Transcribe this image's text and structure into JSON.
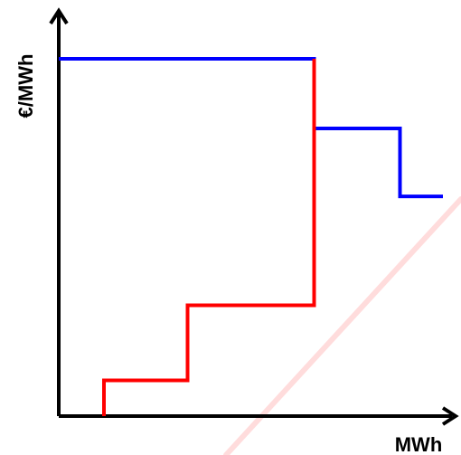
{
  "chart_data": {
    "type": "line",
    "xlabel": "MWh",
    "ylabel": "€/MWh",
    "grid": false,
    "legend": "none",
    "series": [
      {
        "color": "#0000ff",
        "x": [
          0,
          56.5,
          56.5,
          75.5,
          75.5,
          85
        ],
        "y": [
          100,
          100,
          80.5,
          80.5,
          61.5,
          61.5
        ]
      },
      {
        "color": "#ff0000",
        "x": [
          10,
          10,
          28.5,
          28.5,
          56.5,
          56.5
        ],
        "y": [
          0,
          10,
          10,
          31,
          31,
          100
        ]
      }
    ]
  },
  "style": {
    "axis_color": "#000000",
    "watermark_color": "#ffdcdc"
  }
}
